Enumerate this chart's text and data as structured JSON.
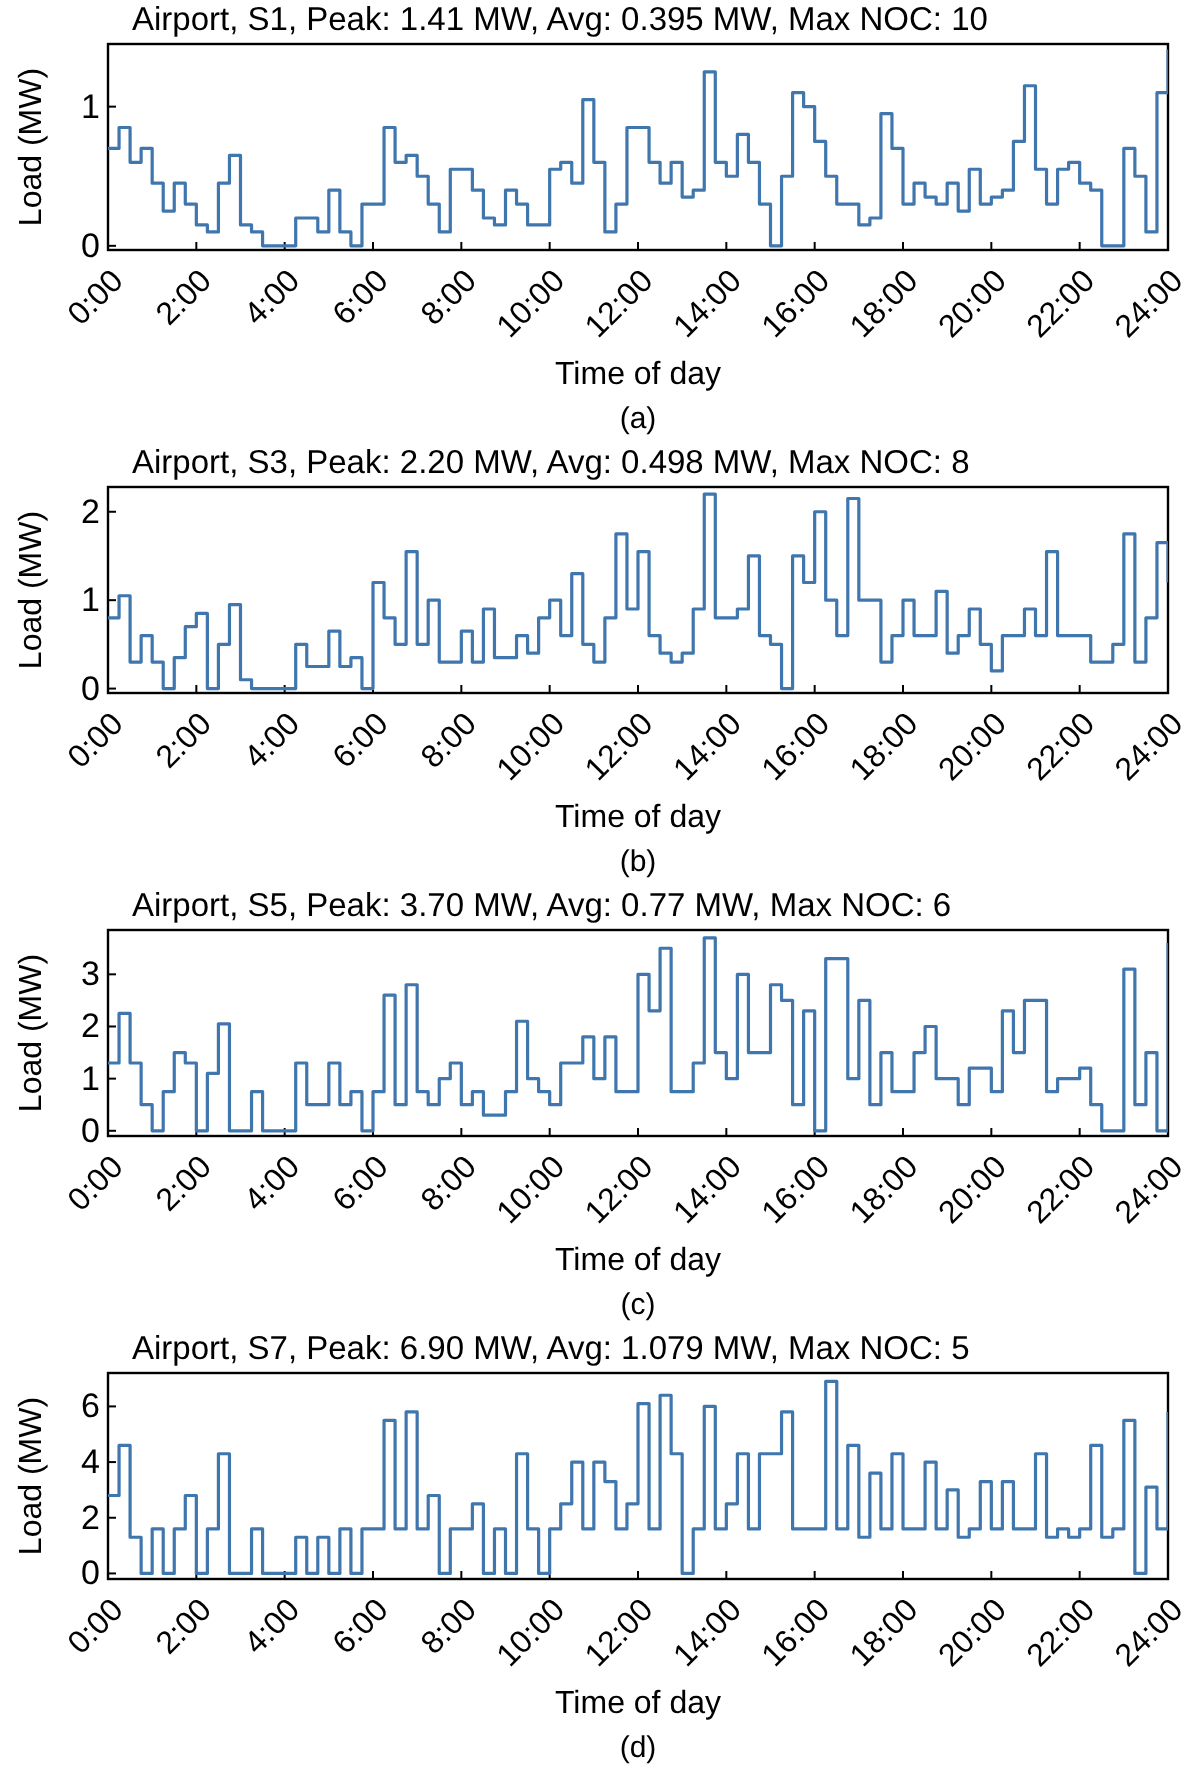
{
  "chart_data": [
    {
      "type": "step",
      "title": "Airport, S1, Peak: 1.41 MW, Avg: 0.395 MW, Max NOC: 10",
      "xlabel": "Time of day",
      "ylabel": "Load (MW)",
      "annotations": [
        "(a)"
      ],
      "xlim": [
        0,
        24
      ],
      "xticks": [
        {
          "value": 0,
          "label": "0:00"
        },
        {
          "value": 2,
          "label": "2:00"
        },
        {
          "value": 4,
          "label": "4:00"
        },
        {
          "value": 6,
          "label": "6:00"
        },
        {
          "value": 8,
          "label": "8:00"
        },
        {
          "value": 10,
          "label": "10:00"
        },
        {
          "value": 12,
          "label": "12:00"
        },
        {
          "value": 14,
          "label": "14:00"
        },
        {
          "value": 16,
          "label": "16:00"
        },
        {
          "value": 18,
          "label": "18:00"
        },
        {
          "value": 20,
          "label": "20:00"
        },
        {
          "value": 22,
          "label": "22:00"
        },
        {
          "value": 24,
          "label": "24:00"
        }
      ],
      "ylim": [
        -0.03,
        1.45
      ],
      "yticks": [
        0,
        1
      ],
      "x": [
        0,
        0.25,
        0.5,
        0.75,
        1,
        1.25,
        1.5,
        1.75,
        2,
        2.25,
        2.5,
        2.75,
        3,
        3.25,
        3.5,
        3.75,
        4,
        4.25,
        4.5,
        4.75,
        5,
        5.25,
        5.5,
        5.75,
        6,
        6.25,
        6.5,
        6.75,
        7,
        7.25,
        7.5,
        7.75,
        8,
        8.25,
        8.5,
        8.75,
        9,
        9.25,
        9.5,
        9.75,
        10,
        10.25,
        10.5,
        10.75,
        11,
        11.25,
        11.5,
        11.75,
        12,
        12.25,
        12.5,
        12.75,
        13,
        13.25,
        13.5,
        13.75,
        14,
        14.25,
        14.5,
        14.75,
        15,
        15.25,
        15.5,
        15.75,
        16,
        16.25,
        16.5,
        16.75,
        17,
        17.25,
        17.5,
        17.75,
        18,
        18.25,
        18.5,
        18.75,
        19,
        19.25,
        19.5,
        19.75,
        20,
        20.25,
        20.5,
        20.75,
        21,
        21.25,
        21.5,
        21.75,
        22,
        22.25,
        22.5,
        22.75,
        23,
        23.25,
        23.5,
        23.75,
        24
      ],
      "series": [
        {
          "color": "#3f76ad",
          "values": [
            0.7,
            0.85,
            0.6,
            0.7,
            0.45,
            0.25,
            0.45,
            0.3,
            0.15,
            0.1,
            0.45,
            0.65,
            0.15,
            0.1,
            0,
            0,
            0,
            0.2,
            0.2,
            0.1,
            0.4,
            0.1,
            0,
            0.3,
            0.3,
            0.85,
            0.6,
            0.65,
            0.5,
            0.3,
            0.1,
            0.55,
            0.55,
            0.4,
            0.2,
            0.15,
            0.4,
            0.3,
            0.15,
            0.15,
            0.55,
            0.6,
            0.45,
            1.05,
            0.6,
            0.1,
            0.3,
            0.85,
            0.85,
            0.6,
            0.45,
            0.6,
            0.35,
            0.4,
            1.25,
            0.6,
            0.5,
            0.8,
            0.6,
            0.3,
            0,
            0.5,
            1.1,
            1,
            0.75,
            0.5,
            0.3,
            0.3,
            0.15,
            0.2,
            0.95,
            0.7,
            0.3,
            0.45,
            0.35,
            0.3,
            0.45,
            0.25,
            0.55,
            0.3,
            0.35,
            0.4,
            0.75,
            1.15,
            0.55,
            0.3,
            0.55,
            0.6,
            0.45,
            0.4,
            0,
            0,
            0.7,
            0.5,
            0.1,
            1.1,
            1.41
          ]
        }
      ]
    },
    {
      "type": "step",
      "title": "Airport, S3, Peak: 2.20 MW, Avg: 0.498 MW, Max NOC: 8",
      "xlabel": "Time of day",
      "ylabel": "Load (MW)",
      "annotations": [
        "(b)"
      ],
      "xlim": [
        0,
        24
      ],
      "xticks": [
        {
          "value": 0,
          "label": "0:00"
        },
        {
          "value": 2,
          "label": "2:00"
        },
        {
          "value": 4,
          "label": "4:00"
        },
        {
          "value": 6,
          "label": "6:00"
        },
        {
          "value": 8,
          "label": "8:00"
        },
        {
          "value": 10,
          "label": "10:00"
        },
        {
          "value": 12,
          "label": "12:00"
        },
        {
          "value": 14,
          "label": "14:00"
        },
        {
          "value": 16,
          "label": "16:00"
        },
        {
          "value": 18,
          "label": "18:00"
        },
        {
          "value": 20,
          "label": "20:00"
        },
        {
          "value": 22,
          "label": "22:00"
        },
        {
          "value": 24,
          "label": "24:00"
        }
      ],
      "ylim": [
        -0.05,
        2.28
      ],
      "yticks": [
        0,
        1,
        2
      ],
      "x": [
        0,
        0.25,
        0.5,
        0.75,
        1,
        1.25,
        1.5,
        1.75,
        2,
        2.25,
        2.5,
        2.75,
        3,
        3.25,
        3.5,
        3.75,
        4,
        4.25,
        4.5,
        4.75,
        5,
        5.25,
        5.5,
        5.75,
        6,
        6.25,
        6.5,
        6.75,
        7,
        7.25,
        7.5,
        7.75,
        8,
        8.25,
        8.5,
        8.75,
        9,
        9.25,
        9.5,
        9.75,
        10,
        10.25,
        10.5,
        10.75,
        11,
        11.25,
        11.5,
        11.75,
        12,
        12.25,
        12.5,
        12.75,
        13,
        13.25,
        13.5,
        13.75,
        14,
        14.25,
        14.5,
        14.75,
        15,
        15.25,
        15.5,
        15.75,
        16,
        16.25,
        16.5,
        16.75,
        17,
        17.25,
        17.5,
        17.75,
        18,
        18.25,
        18.5,
        18.75,
        19,
        19.25,
        19.5,
        19.75,
        20,
        20.25,
        20.5,
        20.75,
        21,
        21.25,
        21.5,
        21.75,
        22,
        22.25,
        22.5,
        22.75,
        23,
        23.25,
        23.5,
        23.75,
        24
      ],
      "series": [
        {
          "color": "#3f76ad",
          "values": [
            0.8,
            1.05,
            0.3,
            0.6,
            0.3,
            0,
            0.35,
            0.7,
            0.85,
            0,
            0.5,
            0.95,
            0.1,
            0,
            0,
            0,
            0,
            0.5,
            0.25,
            0.25,
            0.65,
            0.25,
            0.35,
            0,
            1.2,
            0.8,
            0.5,
            1.55,
            0.5,
            1,
            0.3,
            0.3,
            0.65,
            0.3,
            0.9,
            0.35,
            0.35,
            0.6,
            0.4,
            0.8,
            1,
            0.6,
            1.3,
            0.5,
            0.3,
            0.8,
            1.75,
            0.9,
            1.55,
            0.6,
            0.4,
            0.3,
            0.4,
            0.9,
            2.2,
            0.8,
            0.8,
            0.9,
            1.5,
            0.6,
            0.5,
            0,
            1.5,
            1.2,
            2,
            1,
            0.6,
            2.15,
            1,
            1,
            0.3,
            0.6,
            1,
            0.6,
            0.6,
            1.1,
            0.4,
            0.6,
            0.9,
            0.5,
            0.2,
            0.6,
            0.6,
            0.9,
            0.6,
            1.55,
            0.6,
            0.6,
            0.6,
            0.3,
            0.3,
            0.5,
            1.75,
            0.3,
            0.8,
            1.65,
            1.2
          ]
        }
      ]
    },
    {
      "type": "step",
      "title": "Airport, S5, Peak: 3.70 MW, Avg: 0.77 MW, Max NOC: 6",
      "xlabel": "Time of day",
      "ylabel": "Load (MW)",
      "annotations": [
        "(c)"
      ],
      "xlim": [
        0,
        24
      ],
      "xticks": [
        {
          "value": 0,
          "label": "0:00"
        },
        {
          "value": 2,
          "label": "2:00"
        },
        {
          "value": 4,
          "label": "4:00"
        },
        {
          "value": 6,
          "label": "6:00"
        },
        {
          "value": 8,
          "label": "8:00"
        },
        {
          "value": 10,
          "label": "10:00"
        },
        {
          "value": 12,
          "label": "12:00"
        },
        {
          "value": 14,
          "label": "14:00"
        },
        {
          "value": 16,
          "label": "16:00"
        },
        {
          "value": 18,
          "label": "18:00"
        },
        {
          "value": 20,
          "label": "20:00"
        },
        {
          "value": 22,
          "label": "22:00"
        },
        {
          "value": 24,
          "label": "24:00"
        }
      ],
      "ylim": [
        -0.1,
        3.85
      ],
      "yticks": [
        0,
        1,
        2,
        3
      ],
      "x": [
        0,
        0.25,
        0.5,
        0.75,
        1,
        1.25,
        1.5,
        1.75,
        2,
        2.25,
        2.5,
        2.75,
        3,
        3.25,
        3.5,
        3.75,
        4,
        4.25,
        4.5,
        4.75,
        5,
        5.25,
        5.5,
        5.75,
        6,
        6.25,
        6.5,
        6.75,
        7,
        7.25,
        7.5,
        7.75,
        8,
        8.25,
        8.5,
        8.75,
        9,
        9.25,
        9.5,
        9.75,
        10,
        10.25,
        10.5,
        10.75,
        11,
        11.25,
        11.5,
        11.75,
        12,
        12.25,
        12.5,
        12.75,
        13,
        13.25,
        13.5,
        13.75,
        14,
        14.25,
        14.5,
        14.75,
        15,
        15.25,
        15.5,
        15.75,
        16,
        16.25,
        16.5,
        16.75,
        17,
        17.25,
        17.5,
        17.75,
        18,
        18.25,
        18.5,
        18.75,
        19,
        19.25,
        19.5,
        19.75,
        20,
        20.25,
        20.5,
        20.75,
        21,
        21.25,
        21.5,
        21.75,
        22,
        22.25,
        22.5,
        22.75,
        23,
        23.25,
        23.5,
        23.75,
        24
      ],
      "series": [
        {
          "color": "#3f76ad",
          "values": [
            1.3,
            2.25,
            1.3,
            0.5,
            0,
            0.75,
            1.5,
            1.3,
            0,
            1.1,
            2.05,
            0,
            0,
            0.75,
            0,
            0,
            0,
            1.3,
            0.5,
            0.5,
            1.3,
            0.5,
            0.75,
            0,
            0.75,
            2.6,
            0.5,
            2.8,
            0.75,
            0.5,
            1,
            1.3,
            0.5,
            0.75,
            0.3,
            0.3,
            0.75,
            2.1,
            1,
            0.75,
            0.5,
            1.3,
            1.3,
            1.8,
            1,
            1.8,
            0.75,
            0.75,
            3,
            2.3,
            3.5,
            0.75,
            0.75,
            1.3,
            3.7,
            1.5,
            1,
            3,
            1.5,
            1.5,
            2.8,
            2.5,
            0.5,
            2.3,
            0,
            3.3,
            3.3,
            1,
            2.5,
            0.5,
            1.5,
            0.75,
            0.75,
            1.5,
            2,
            1,
            1,
            0.5,
            1.2,
            1.2,
            0.75,
            2.3,
            1.5,
            2.5,
            2.5,
            0.75,
            1,
            1,
            1.2,
            0.5,
            0,
            0,
            3.1,
            0.5,
            1.5,
            0,
            3.6
          ]
        }
      ]
    },
    {
      "type": "step",
      "title": "Airport, S7, Peak: 6.90 MW, Avg: 1.079 MW, Max NOC: 5",
      "xlabel": "Time of day",
      "ylabel": "Load (MW)",
      "annotations": [
        "(d)"
      ],
      "xlim": [
        0,
        24
      ],
      "xticks": [
        {
          "value": 0,
          "label": "0:00"
        },
        {
          "value": 2,
          "label": "2:00"
        },
        {
          "value": 4,
          "label": "4:00"
        },
        {
          "value": 6,
          "label": "6:00"
        },
        {
          "value": 8,
          "label": "8:00"
        },
        {
          "value": 10,
          "label": "10:00"
        },
        {
          "value": 12,
          "label": "12:00"
        },
        {
          "value": 14,
          "label": "14:00"
        },
        {
          "value": 16,
          "label": "16:00"
        },
        {
          "value": 18,
          "label": "18:00"
        },
        {
          "value": 20,
          "label": "20:00"
        },
        {
          "value": 22,
          "label": "22:00"
        },
        {
          "value": 24,
          "label": "24:00"
        }
      ],
      "ylim": [
        -0.2,
        7.2
      ],
      "yticks": [
        0,
        2,
        4,
        6
      ],
      "x": [
        0,
        0.25,
        0.5,
        0.75,
        1,
        1.25,
        1.5,
        1.75,
        2,
        2.25,
        2.5,
        2.75,
        3,
        3.25,
        3.5,
        3.75,
        4,
        4.25,
        4.5,
        4.75,
        5,
        5.25,
        5.5,
        5.75,
        6,
        6.25,
        6.5,
        6.75,
        7,
        7.25,
        7.5,
        7.75,
        8,
        8.25,
        8.5,
        8.75,
        9,
        9.25,
        9.5,
        9.75,
        10,
        10.25,
        10.5,
        10.75,
        11,
        11.25,
        11.5,
        11.75,
        12,
        12.25,
        12.5,
        12.75,
        13,
        13.25,
        13.5,
        13.75,
        14,
        14.25,
        14.5,
        14.75,
        15,
        15.25,
        15.5,
        15.75,
        16,
        16.25,
        16.5,
        16.75,
        17,
        17.25,
        17.5,
        17.75,
        18,
        18.25,
        18.5,
        18.75,
        19,
        19.25,
        19.5,
        19.75,
        20,
        20.25,
        20.5,
        20.75,
        21,
        21.25,
        21.5,
        21.75,
        22,
        22.25,
        22.5,
        22.75,
        23,
        23.25,
        23.5,
        23.75,
        24
      ],
      "series": [
        {
          "color": "#3f76ad",
          "values": [
            2.8,
            4.6,
            1.3,
            0,
            1.6,
            0,
            1.6,
            2.8,
            0,
            1.6,
            4.3,
            0,
            0,
            1.6,
            0,
            0,
            0,
            1.3,
            0,
            1.3,
            0,
            1.6,
            0,
            1.6,
            1.6,
            5.5,
            1.6,
            5.8,
            1.6,
            2.8,
            0,
            1.6,
            1.6,
            2.5,
            0,
            1.6,
            0,
            4.3,
            1.6,
            0,
            1.6,
            2.5,
            4,
            1.6,
            4,
            3.3,
            1.6,
            2.5,
            6.1,
            1.6,
            6.4,
            4.3,
            0,
            1.6,
            6,
            1.6,
            2.5,
            4.3,
            1.6,
            4.3,
            4.3,
            5.8,
            1.6,
            1.6,
            1.6,
            6.9,
            1.6,
            4.6,
            1.3,
            3.6,
            1.6,
            4.3,
            1.6,
            1.6,
            4,
            1.6,
            3,
            1.3,
            1.6,
            3.3,
            1.6,
            3.3,
            1.6,
            1.6,
            4.3,
            1.3,
            1.6,
            1.3,
            1.6,
            4.6,
            1.3,
            1.6,
            5.5,
            0,
            3.1,
            1.6,
            5.8
          ]
        }
      ]
    }
  ]
}
